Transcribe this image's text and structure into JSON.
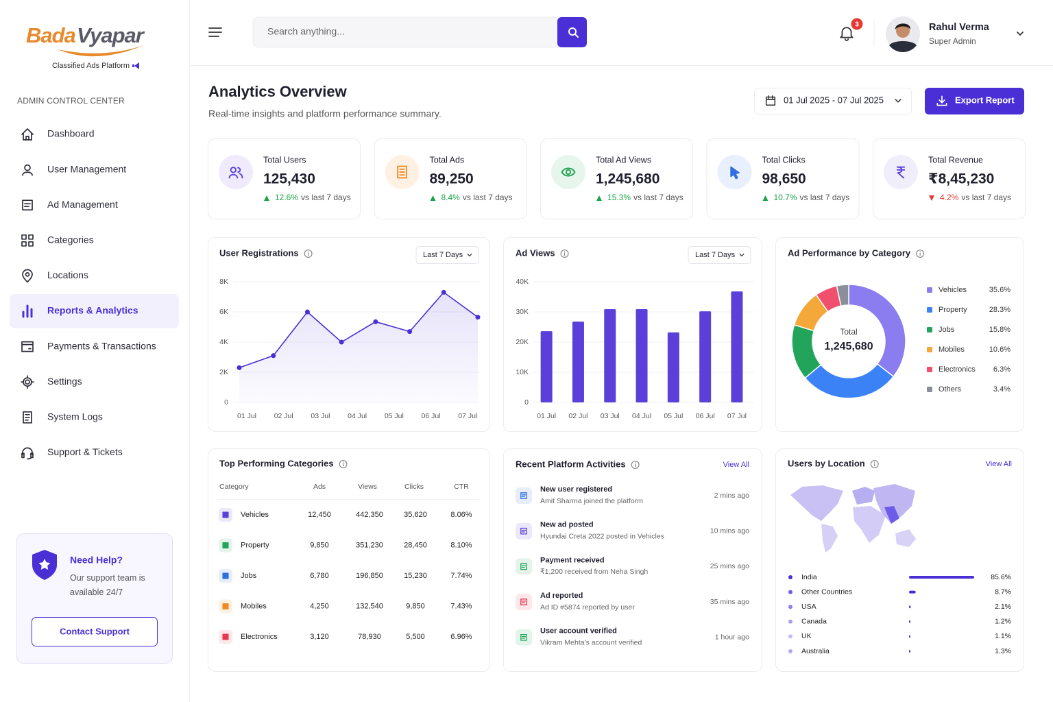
{
  "brand": {
    "name_part1": "Bada",
    "name_part2": "Vyapar",
    "tagline": "Classified Ads Platform"
  },
  "sidebar": {
    "section_title": "ADMIN CONTROL CENTER",
    "nav": [
      {
        "label": "Dashboard",
        "icon": "home"
      },
      {
        "label": "User Management",
        "icon": "user"
      },
      {
        "label": "Ad Management",
        "icon": "ad"
      },
      {
        "label": "Categories",
        "icon": "grid"
      },
      {
        "label": "Locations",
        "icon": "pin"
      },
      {
        "label": "Reports & Analytics",
        "icon": "bars",
        "active": true
      },
      {
        "label": "Payments & Transactions",
        "icon": "card"
      },
      {
        "label": "Settings",
        "icon": "gear"
      },
      {
        "label": "System Logs",
        "icon": "log"
      },
      {
        "label": "Support & Tickets",
        "icon": "headset"
      }
    ],
    "help": {
      "title": "Need Help?",
      "text": "Our support team is available 24/7",
      "button": "Contact Support"
    }
  },
  "header": {
    "search_placeholder": "Search anything...",
    "notifications": 3,
    "user": {
      "name": "Rahul Verma",
      "role": "Super Admin"
    }
  },
  "page": {
    "title": "Analytics Overview",
    "subtitle": "Real-time insights and platform performance summary.",
    "date_range": "01 Jul 2025 - 07 Jul 2025",
    "export_button": "Export Report"
  },
  "stats": [
    {
      "label": "Total Users",
      "value": "125,430",
      "change": "12.6%",
      "trend": "up",
      "compare": "vs last 7 days",
      "icon": "users",
      "color": "#5b3fd9",
      "bg": "#efebfc"
    },
    {
      "label": "Total Ads",
      "value": "89,250",
      "change": "8.4%",
      "trend": "up",
      "compare": "vs last 7 days",
      "icon": "doc",
      "color": "#f08a24",
      "bg": "#fef1e4"
    },
    {
      "label": "Total Ad Views",
      "value": "1,245,680",
      "change": "15.3%",
      "trend": "up",
      "compare": "vs last 7 days",
      "icon": "eye",
      "color": "#1f9d4c",
      "bg": "#e7f6ec"
    },
    {
      "label": "Total Clicks",
      "value": "98,650",
      "change": "10.7%",
      "trend": "up",
      "compare": "vs last 7 days",
      "icon": "cursor",
      "color": "#2f6fe0",
      "bg": "#e8f0fd"
    },
    {
      "label": "Total Revenue",
      "value": "₹8,45,230",
      "change": "4.2%",
      "trend": "down",
      "compare": "vs last 7 days",
      "icon": "rupee",
      "color": "#5b3fd9",
      "bg": "#f1eefc"
    }
  ],
  "chart_data": [
    {
      "type": "line",
      "title": "User Registrations",
      "filter": "Last 7 Days",
      "categories": [
        "01 Jul",
        "02 Jul",
        "03 Jul",
        "04 Jul",
        "05 Jul",
        "06 Jul",
        "07 Jul",
        null
      ],
      "values": [
        2300,
        3100,
        6000,
        4000,
        5350,
        4700,
        7300,
        5650
      ],
      "color": "#4b2fd6",
      "ylim": [
        0,
        8000
      ],
      "yticks": [
        0,
        {
          "value": 2000,
          "label": "2K"
        },
        {
          "value": 4000,
          "label": "4K"
        },
        {
          "value": 6000,
          "label": "6K"
        },
        {
          "value": 8000,
          "label": "8K"
        }
      ],
      "grid": true
    },
    {
      "type": "bar",
      "title": "Ad Views",
      "filter": "Last 7 Days",
      "categories": [
        "01 Jul",
        "02 Jul",
        "03 Jul",
        "04 Jul",
        "05 Jul",
        "06 Jul",
        "07 Jul"
      ],
      "values": [
        23600,
        26800,
        30900,
        30900,
        23200,
        30200,
        36800
      ],
      "color": "#5b3fd9",
      "ylim": [
        0,
        40000
      ],
      "yticks": [
        0,
        {
          "value": 10000,
          "label": "10K"
        },
        {
          "value": 20000,
          "label": "20K"
        },
        {
          "value": 30000,
          "label": "30K"
        },
        {
          "value": 40000,
          "label": "40K"
        }
      ],
      "grid": true
    },
    {
      "type": "pie",
      "title": "Ad Performance by Category",
      "center_label": "Total",
      "center_value": "1,245,680",
      "categories": [
        "Vehicles",
        "Property",
        "Jobs",
        "Mobiles",
        "Electronics",
        "Others"
      ],
      "values": [
        35.6,
        28.3,
        15.8,
        10.6,
        6.3,
        3.4
      ],
      "value_labels": [
        "35.6%",
        "28.3%",
        "15.8%",
        "10.6%",
        "6.3%",
        "3.4%"
      ],
      "colors": [
        "#8b7cf0",
        "#3b82f6",
        "#22a55b",
        "#f5a83a",
        "#f0506e",
        "#8a8f99"
      ]
    }
  ],
  "top_categories": {
    "title": "Top Performing Categories",
    "columns": [
      "Category",
      "Ads",
      "Views",
      "Clicks",
      "CTR"
    ],
    "rows": [
      [
        "Vehicles",
        "12,450",
        "442,350",
        "35,620",
        "8.06%"
      ],
      [
        "Property",
        "9,850",
        "351,230",
        "28,450",
        "8.10%"
      ],
      [
        "Jobs",
        "6,780",
        "196,850",
        "15,230",
        "7.74%"
      ],
      [
        "Mobiles",
        "4,250",
        "132,540",
        "9,850",
        "7.43%"
      ],
      [
        "Electronics",
        "3,120",
        "78,930",
        "5,500",
        "6.96%"
      ]
    ],
    "icon_colors": [
      "#5b3fd9",
      "#22a55b",
      "#2f6fe0",
      "#f08a24",
      "#e53950"
    ]
  },
  "activities": {
    "title": "Recent Platform Activities",
    "view_all": "View All",
    "items": [
      {
        "title": "New user registered",
        "description": "Amit Sharma joined the platform",
        "time": "2 mins ago",
        "color": "#2f6fe0"
      },
      {
        "title": "New ad posted",
        "description": "Hyundai Creta 2022 posted in Vehicles",
        "time": "10 mins ago",
        "color": "#5b3fd9"
      },
      {
        "title": "Payment received",
        "description": "₹1,200 received from Neha Singh",
        "time": "25 mins ago",
        "color": "#22a55b"
      },
      {
        "title": "Ad reported",
        "description": "Ad ID #5874 reported by user",
        "time": "35 mins ago",
        "color": "#e53950"
      },
      {
        "title": "User account verified",
        "description": "Vikram Mehta's account verified",
        "time": "1 hour ago",
        "color": "#22a55b"
      }
    ]
  },
  "users_by_location": {
    "type": "bar",
    "title": "Users by Location",
    "view_all": "View All",
    "categories": [
      "India",
      "Other Countries",
      "USA",
      "Canada",
      "UK",
      "Australia"
    ],
    "values": [
      85.6,
      8.7,
      2.1,
      1.2,
      1.1,
      1.3
    ],
    "value_labels": [
      "85.6%",
      "8.7%",
      "2.1%",
      "1.2%",
      "1.1%",
      "1.3%"
    ],
    "xlim": [
      0,
      100
    ],
    "color": "#4b2fd6",
    "colors": [
      "#4b2fd6",
      "#6d5ce8",
      "#8b7cf0",
      "#a99ff2",
      "#c3bcf5",
      "#b0a8ee"
    ]
  }
}
